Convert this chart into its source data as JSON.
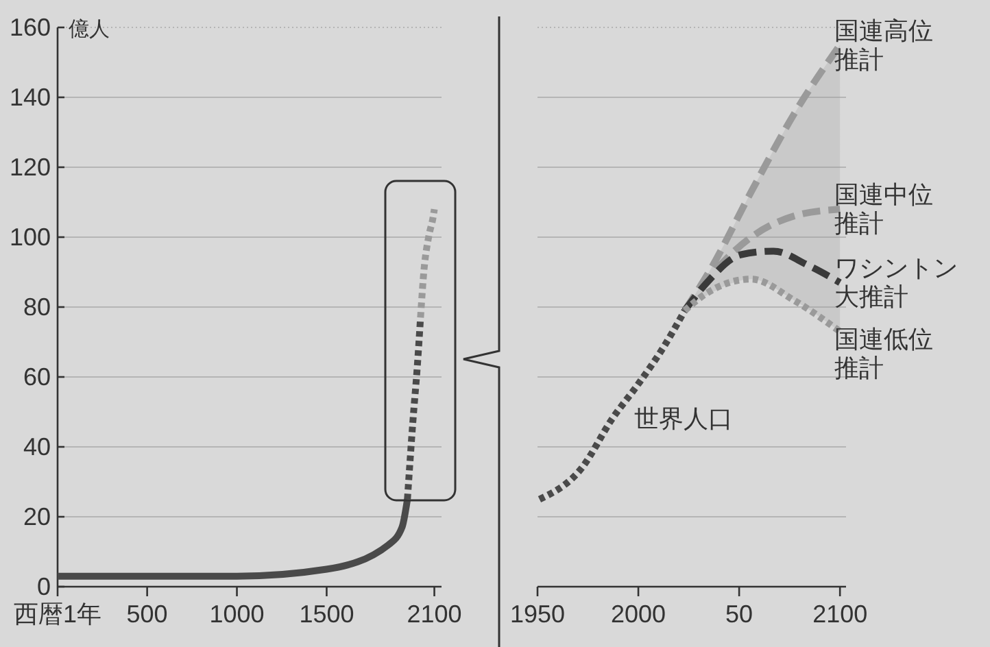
{
  "chart_data": [
    {
      "type": "line",
      "ylabel": "億人",
      "xlim": [
        1,
        2140
      ],
      "xticks": [
        {
          "value": 1,
          "label": "西暦1年"
        },
        500,
        1000,
        1500,
        2100
      ],
      "ylim": [
        0,
        160
      ],
      "yticks": [
        0,
        20,
        40,
        60,
        80,
        100,
        120,
        140,
        160
      ],
      "grid": "y",
      "series": [
        {
          "color": "#4a4a4a",
          "line_style": "solid",
          "x": [
            1,
            1000,
            1500,
            1845,
            1920,
            1950
          ],
          "values": [
            3,
            3,
            5,
            12,
            17,
            25
          ]
        },
        {
          "color": "#4a4a4a",
          "line_style": "dotted",
          "x": [
            1950,
            1980,
            2005,
            2023
          ],
          "values": [
            25,
            47,
            63,
            77
          ]
        },
        {
          "color": "#9a9a9a",
          "line_style": "dotted",
          "x": [
            2023,
            2043,
            2068,
            2094,
            2100
          ],
          "values": [
            77,
            91,
            100,
            106,
            108
          ]
        }
      ]
    },
    {
      "type": "line",
      "xlim": [
        1950,
        2103
      ],
      "xticks": [
        1950,
        2000,
        {
          "value": 2050,
          "label": "50"
        },
        2100
      ],
      "ylim": [
        0,
        160
      ],
      "yticks": [
        0,
        20,
        40,
        60,
        80,
        100,
        120,
        140,
        160
      ],
      "grid": "y",
      "tick_labels": "x",
      "series": [
        {
          "name": "世界人口",
          "color": "#4a4a4a",
          "line_style": "dotted",
          "x": [
            1951,
            1972,
            1987,
            2000,
            2013,
            2023
          ],
          "values": [
            25,
            34,
            48,
            58,
            69,
            79
          ]
        },
        {
          "name": "国連高位推計",
          "color": "#9a9a9a",
          "line_style": "dashed",
          "x": [
            2023,
            2036,
            2056,
            2077,
            2100
          ],
          "values": [
            79,
            91,
            113,
            135,
            155
          ]
        },
        {
          "name": "国連中位推計",
          "color": "#9a9a9a",
          "line_style": "dashed",
          "x": [
            2023,
            2036,
            2056,
            2077,
            2100
          ],
          "values": [
            79,
            89,
            100,
            106,
            108
          ],
          "lower": [
            79,
            84,
            88,
            82,
            73
          ],
          "upper": [
            79,
            91,
            113,
            135,
            155
          ]
        },
        {
          "name": "ワシントン大推計",
          "color": "#3a3a3a",
          "line_style": "dashed",
          "x": [
            2023,
            2034,
            2051,
            2067,
            2084,
            2100
          ],
          "values": [
            79,
            87,
            95,
            96,
            92,
            87
          ]
        },
        {
          "name": "国連低位推計",
          "color": "#9a9a9a",
          "line_style": "dotted",
          "x": [
            2023,
            2034,
            2056,
            2077,
            2100
          ],
          "values": [
            79,
            84,
            88,
            82,
            73
          ]
        }
      ]
    }
  ]
}
